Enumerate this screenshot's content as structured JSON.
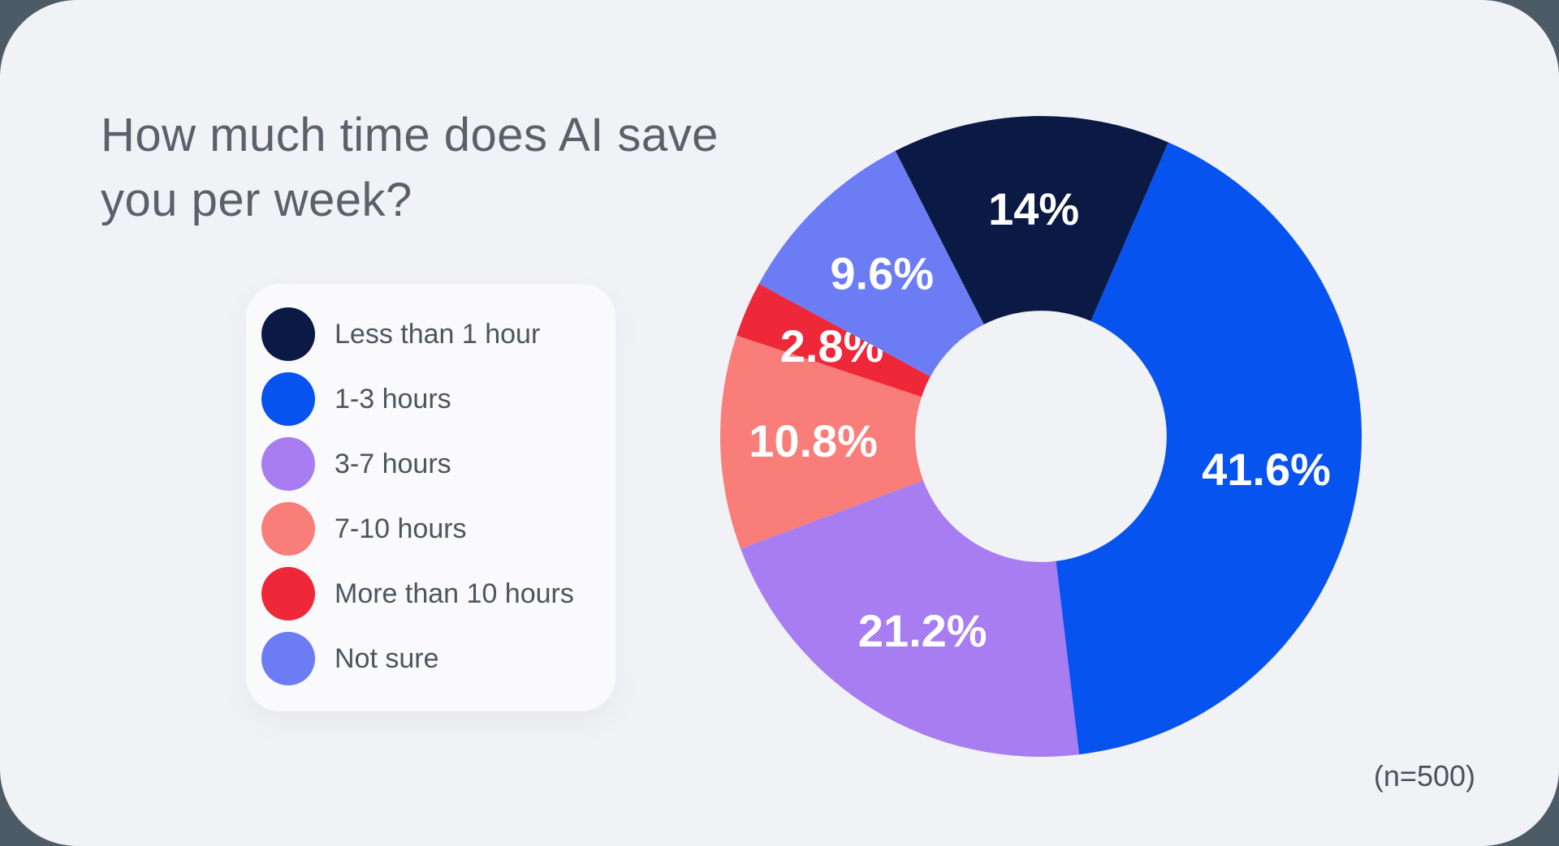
{
  "title": {
    "line1": "How much time does AI save",
    "line2": "you per week?"
  },
  "sample_note": "(n=500)",
  "theme": {
    "backdrop_color": "#4C5B65",
    "card_color": "#F1F2F6",
    "legend_card_color": "#FAFAFC",
    "title_color": "#59616B",
    "legend_text_color": "#4C555E",
    "note_color": "#4A525C",
    "slice_label_color": "#FFFFFF"
  },
  "chart_data": {
    "type": "pie",
    "subtype": "donut",
    "title": "How much time does AI save you per week?",
    "categories": [
      "Less than 1 hour",
      "1-3 hours",
      "3-7 hours",
      "7-10 hours",
      "More than 10 hours",
      "Not sure"
    ],
    "values": [
      14,
      41.6,
      21.2,
      10.8,
      2.8,
      9.6
    ],
    "labels": [
      "14%",
      "41.6%",
      "21.2%",
      "10.8%",
      "2.8%",
      "9.6%"
    ],
    "colors": [
      "#0B1A45",
      "#0653F0",
      "#A77DF1",
      "#F97D78",
      "#EE2838",
      "#6C7CF4"
    ],
    "unit": "%",
    "n": 500,
    "layout": {
      "start_angle_deg": -27,
      "clockwise": true,
      "outer_radius_px": 395,
      "inner_radius_frac": 0.392,
      "label_radius_frac": 0.71,
      "legend_position": "left",
      "grid": false
    }
  }
}
